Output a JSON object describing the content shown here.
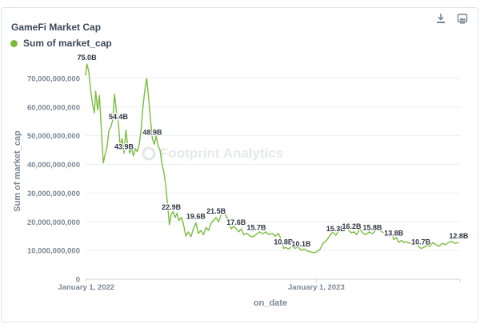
{
  "card": {
    "title": "GameFi Market Cap"
  },
  "toolbar": {
    "download_icon": "download-icon",
    "image_icon": "image-export-icon"
  },
  "legend": {
    "label": "Sum of market_cap",
    "color": "#7cbb3f"
  },
  "watermark": {
    "text": "Footprint Analytics"
  },
  "chart_data": {
    "type": "line",
    "title": "GameFi Market Cap",
    "xlabel": "on_date",
    "ylabel": "Sum of market_cap",
    "series_name": "Sum of market_cap",
    "color": "#7cbb3f",
    "x_ticks": [
      "January 1, 2022",
      "January 1, 2023"
    ],
    "y_ticks": [
      0,
      10000000000,
      20000000000,
      30000000000,
      40000000000,
      50000000000,
      60000000000,
      70000000000
    ],
    "y_tick_labels": [
      "0",
      "10,000,000,000",
      "20,000,000,000",
      "30,000,000,000",
      "40,000,000,000",
      "50,000,000,000",
      "60,000,000,000",
      "70,000,000,000"
    ],
    "xlim": [
      "2021-12-31",
      "2023-08-17"
    ],
    "ylim": [
      0,
      75000000000
    ],
    "grid": "horizontal",
    "legend_position": "top-left",
    "points": [
      [
        "2021-12-31",
        71000000000.0
      ],
      [
        "2022-01-02",
        75000000000.0
      ],
      [
        "2022-01-05",
        72500000000.0
      ],
      [
        "2022-01-08",
        66000000000.0
      ],
      [
        "2022-01-11",
        61000000000.0
      ],
      [
        "2022-01-14",
        58000000000.0
      ],
      [
        "2022-01-16",
        65500000000.0
      ],
      [
        "2022-01-19",
        59000000000.0
      ],
      [
        "2022-01-22",
        64000000000.0
      ],
      [
        "2022-01-25",
        52000000000.0
      ],
      [
        "2022-01-28",
        40500000000.0
      ],
      [
        "2022-01-31",
        43500000000.0
      ],
      [
        "2022-02-03",
        46000000000.0
      ],
      [
        "2022-02-06",
        52000000000.0
      ],
      [
        "2022-02-09",
        53000000000.0
      ],
      [
        "2022-02-12",
        55500000000.0
      ],
      [
        "2022-02-15",
        64500000000.0
      ],
      [
        "2022-02-18",
        58000000000.0
      ],
      [
        "2022-02-21",
        54400000000.0
      ],
      [
        "2022-02-24",
        46000000000.0
      ],
      [
        "2022-02-27",
        49000000000.0
      ],
      [
        "2022-03-02",
        43900000000.0
      ],
      [
        "2022-03-05",
        52000000000.0
      ],
      [
        "2022-03-08",
        46000000000.0
      ],
      [
        "2022-03-11",
        44000000000.0
      ],
      [
        "2022-03-14",
        45500000000.0
      ],
      [
        "2022-03-17",
        43000000000.0
      ],
      [
        "2022-03-20",
        45500000000.0
      ],
      [
        "2022-03-23",
        44500000000.0
      ],
      [
        "2022-03-26",
        47000000000.0
      ],
      [
        "2022-03-29",
        52000000000.0
      ],
      [
        "2022-04-01",
        60000000000.0
      ],
      [
        "2022-04-04",
        66000000000.0
      ],
      [
        "2022-04-07",
        70000000000.0
      ],
      [
        "2022-04-10",
        63000000000.0
      ],
      [
        "2022-04-13",
        55500000000.0
      ],
      [
        "2022-04-16",
        48900000000.0
      ],
      [
        "2022-04-19",
        47000000000.0
      ],
      [
        "2022-04-22",
        50000000000.0
      ],
      [
        "2022-04-25",
        46500000000.0
      ],
      [
        "2022-04-28",
        45000000000.0
      ],
      [
        "2022-05-01",
        40500000000.0
      ],
      [
        "2022-05-04",
        37500000000.0
      ],
      [
        "2022-05-07",
        33000000000.0
      ],
      [
        "2022-05-10",
        26000000000.0
      ],
      [
        "2022-05-13",
        19000000000.0
      ],
      [
        "2022-05-16",
        22900000000.0
      ],
      [
        "2022-05-19",
        23500000000.0
      ],
      [
        "2022-05-22",
        21500000000.0
      ],
      [
        "2022-05-25",
        23000000000.0
      ],
      [
        "2022-05-28",
        20500000000.0
      ],
      [
        "2022-06-01",
        21500000000.0
      ],
      [
        "2022-06-04",
        19500000000.0
      ],
      [
        "2022-06-08",
        15000000000.0
      ],
      [
        "2022-06-12",
        16500000000.0
      ],
      [
        "2022-06-16",
        14800000000.0
      ],
      [
        "2022-06-20",
        17500000000.0
      ],
      [
        "2022-06-24",
        19600000000.0
      ],
      [
        "2022-06-28",
        16000000000.0
      ],
      [
        "2022-07-02",
        17000000000.0
      ],
      [
        "2022-07-06",
        15500000000.0
      ],
      [
        "2022-07-10",
        18000000000.0
      ],
      [
        "2022-07-14",
        17000000000.0
      ],
      [
        "2022-07-18",
        19500000000.0
      ],
      [
        "2022-07-22",
        20500000000.0
      ],
      [
        "2022-07-26",
        21500000000.0
      ],
      [
        "2022-07-30",
        20000000000.0
      ],
      [
        "2022-08-03",
        22500000000.0
      ],
      [
        "2022-08-07",
        23500000000.0
      ],
      [
        "2022-08-11",
        22000000000.0
      ],
      [
        "2022-08-15",
        20500000000.0
      ],
      [
        "2022-08-19",
        17500000000.0
      ],
      [
        "2022-08-23",
        18500000000.0
      ],
      [
        "2022-08-27",
        17600000000.0
      ],
      [
        "2022-08-31",
        16500000000.0
      ],
      [
        "2022-09-04",
        17500000000.0
      ],
      [
        "2022-09-08",
        15500000000.0
      ],
      [
        "2022-09-13",
        16000000000.0
      ],
      [
        "2022-09-18",
        15000000000.0
      ],
      [
        "2022-09-23",
        14800000000.0
      ],
      [
        "2022-09-28",
        15700000000.0
      ],
      [
        "2022-10-03",
        16500000000.0
      ],
      [
        "2022-10-08",
        15800000000.0
      ],
      [
        "2022-10-13",
        16500000000.0
      ],
      [
        "2022-10-18",
        15500000000.0
      ],
      [
        "2022-10-23",
        16000000000.0
      ],
      [
        "2022-10-28",
        15000000000.0
      ],
      [
        "2022-11-02",
        16000000000.0
      ],
      [
        "2022-11-07",
        13500000000.0
      ],
      [
        "2022-11-10",
        10800000000.0
      ],
      [
        "2022-11-14",
        11000000000.0
      ],
      [
        "2022-11-18",
        10500000000.0
      ],
      [
        "2022-11-23",
        11500000000.0
      ],
      [
        "2022-11-28",
        10800000000.0
      ],
      [
        "2022-12-03",
        11200000000.0
      ],
      [
        "2022-12-08",
        10100000000.0
      ],
      [
        "2022-12-13",
        10500000000.0
      ],
      [
        "2022-12-18",
        9800000000.0
      ],
      [
        "2022-12-23",
        9500000000.0
      ],
      [
        "2022-12-28",
        9200000000.0
      ],
      [
        "2023-01-02",
        9600000000.0
      ],
      [
        "2023-01-07",
        10500000000.0
      ],
      [
        "2023-01-12",
        12500000000.0
      ],
      [
        "2023-01-17",
        13500000000.0
      ],
      [
        "2023-01-22",
        15000000000.0
      ],
      [
        "2023-01-27",
        16500000000.0
      ],
      [
        "2023-02-01",
        15300000000.0
      ],
      [
        "2023-02-06",
        17000000000.0
      ],
      [
        "2023-02-10",
        18500000000.0
      ],
      [
        "2023-02-14",
        17000000000.0
      ],
      [
        "2023-02-18",
        18500000000.0
      ],
      [
        "2023-02-22",
        16800000000.0
      ],
      [
        "2023-02-26",
        16200000000.0
      ],
      [
        "2023-03-02",
        16500000000.0
      ],
      [
        "2023-03-06",
        15500000000.0
      ],
      [
        "2023-03-11",
        17500000000.0
      ],
      [
        "2023-03-16",
        16000000000.0
      ],
      [
        "2023-03-21",
        15500000000.0
      ],
      [
        "2023-03-26",
        16500000000.0
      ],
      [
        "2023-03-31",
        15800000000.0
      ],
      [
        "2023-04-05",
        17000000000.0
      ],
      [
        "2023-04-10",
        17500000000.0
      ],
      [
        "2023-04-15",
        16500000000.0
      ],
      [
        "2023-04-20",
        16000000000.0
      ],
      [
        "2023-04-25",
        15000000000.0
      ],
      [
        "2023-04-30",
        16000000000.0
      ],
      [
        "2023-05-04",
        13800000000.0
      ],
      [
        "2023-05-08",
        14500000000.0
      ],
      [
        "2023-05-12",
        12800000000.0
      ],
      [
        "2023-05-16",
        13500000000.0
      ],
      [
        "2023-05-20",
        12800000000.0
      ],
      [
        "2023-05-25",
        13000000000.0
      ],
      [
        "2023-05-30",
        12500000000.0
      ],
      [
        "2023-06-04",
        12800000000.0
      ],
      [
        "2023-06-08",
        13500000000.0
      ],
      [
        "2023-06-12",
        11500000000.0
      ],
      [
        "2023-06-16",
        10700000000.0
      ],
      [
        "2023-06-20",
        11000000000.0
      ],
      [
        "2023-06-25",
        11800000000.0
      ],
      [
        "2023-06-30",
        11500000000.0
      ],
      [
        "2023-07-05",
        12800000000.0
      ],
      [
        "2023-07-10",
        12000000000.0
      ],
      [
        "2023-07-15",
        11500000000.0
      ],
      [
        "2023-07-20",
        12500000000.0
      ],
      [
        "2023-07-25",
        12000000000.0
      ],
      [
        "2023-07-30",
        12800000000.0
      ],
      [
        "2023-08-04",
        13200000000.0
      ],
      [
        "2023-08-09",
        12500000000.0
      ],
      [
        "2023-08-15",
        12800000000.0
      ]
    ],
    "data_labels": [
      {
        "x": "2022-01-02",
        "y": 75000000000.0,
        "text": "75.0B"
      },
      {
        "x": "2022-02-21",
        "y": 54400000000.0,
        "text": "54.4B"
      },
      {
        "x": "2022-03-02",
        "y": 43900000000.0,
        "text": "43.9B"
      },
      {
        "x": "2022-04-16",
        "y": 48900000000.0,
        "text": "48.9B"
      },
      {
        "x": "2022-05-16",
        "y": 22900000000.0,
        "text": "22.9B"
      },
      {
        "x": "2022-06-24",
        "y": 19600000000.0,
        "text": "19.6B"
      },
      {
        "x": "2022-07-26",
        "y": 21500000000.0,
        "text": "21.5B"
      },
      {
        "x": "2022-08-27",
        "y": 17600000000.0,
        "text": "17.6B"
      },
      {
        "x": "2022-09-28",
        "y": 15700000000.0,
        "text": "15.7B"
      },
      {
        "x": "2022-11-10",
        "y": 10800000000.0,
        "text": "10.8B"
      },
      {
        "x": "2022-12-08",
        "y": 10100000000.0,
        "text": "10.1B"
      },
      {
        "x": "2023-02-01",
        "y": 15300000000.0,
        "text": "15.3B"
      },
      {
        "x": "2023-02-26",
        "y": 16200000000.0,
        "text": "16.2B"
      },
      {
        "x": "2023-03-31",
        "y": 15800000000.0,
        "text": "15.8B"
      },
      {
        "x": "2023-05-04",
        "y": 13800000000.0,
        "text": "13.8B"
      },
      {
        "x": "2023-06-16",
        "y": 10700000000.0,
        "text": "10.7B"
      },
      {
        "x": "2023-08-15",
        "y": 12800000000.0,
        "text": "12.8B"
      }
    ]
  }
}
